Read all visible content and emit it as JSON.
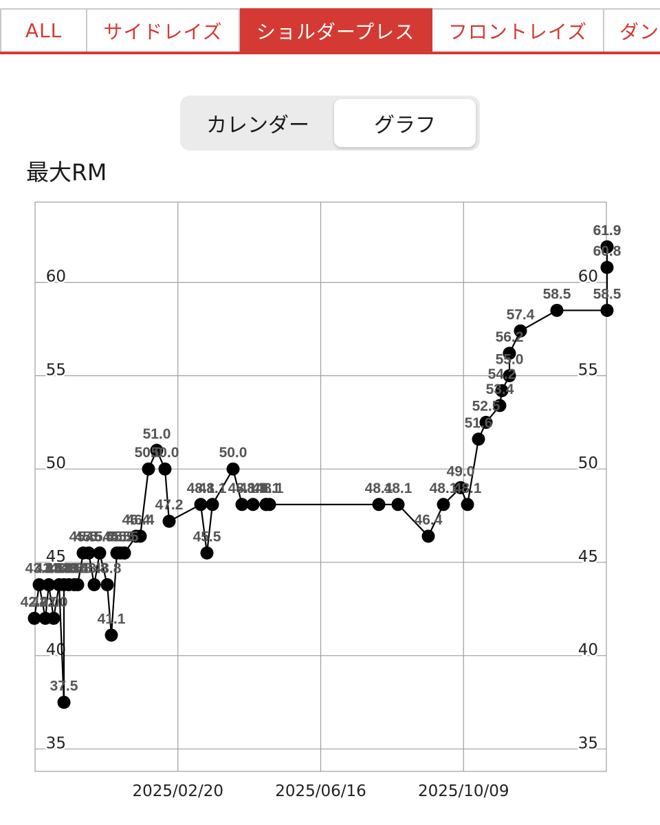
{
  "tabs": [
    {
      "label": "ALL",
      "active": false
    },
    {
      "label": "サイドレイズ",
      "active": false
    },
    {
      "label": "ショルダープレス",
      "active": true
    },
    {
      "label": "フロントレイズ",
      "active": false
    },
    {
      "label": "ダン",
      "active": false
    }
  ],
  "view_toggle": {
    "calendar_label": "カレンダー",
    "graph_label": "グラフ",
    "selected": "グラフ"
  },
  "colors": {
    "accent": "#d43a33",
    "line": "#000000",
    "grid": "#9e9e9e",
    "point_label": "#555555"
  },
  "chart_data": {
    "type": "line",
    "title": "最大RM",
    "xlabel": "",
    "ylabel": "",
    "x_tick_labels": [
      "2025/02/20",
      "2025/06/16",
      "2025/10/09"
    ],
    "y_ticks": [
      35,
      40,
      45,
      50,
      55,
      60
    ],
    "ylim": [
      33.8,
      64.3
    ],
    "grid": true,
    "series": [
      {
        "values": [
          42.0,
          43.8,
          42.0,
          43.8,
          42.0,
          43.8,
          37.5,
          43.8,
          43.8,
          43.8,
          43.8,
          45.5,
          45.5,
          43.8,
          45.5,
          43.8,
          41.1,
          45.5,
          45.5,
          45.5,
          45.5,
          46.4,
          46.4,
          50.0,
          51.0,
          50.0,
          47.2,
          48.1,
          45.5,
          48.1,
          50.0,
          48.1,
          48.1,
          48.1,
          48.1,
          48.1,
          48.1,
          48.1,
          46.4,
          48.1,
          49.0,
          48.1,
          51.6,
          52.5,
          53.4,
          54.2,
          55.0,
          56.2,
          57.4,
          58.5,
          58.5,
          61.9,
          61.9,
          60.8
        ],
        "labels": [
          "42.0",
          "43.8",
          "42.0",
          "43.8",
          "42.0",
          "43.8",
          "37.5",
          "43.8",
          "43.8",
          "43.8",
          "43.8",
          "45.5",
          "45.5",
          "43.8",
          "45.5",
          "43.8",
          "41.1",
          "45.5",
          "45.5",
          "45.5",
          "45.5",
          "46.4",
          "46.4",
          "50.0",
          "51.0",
          "50.0",
          "47.2",
          "48.1",
          "45.5",
          "48.1",
          "50.0",
          "48.1",
          "48.1",
          "48.1",
          "48.1",
          "48.1",
          "48.1",
          "48.1",
          "46.4",
          "48.1",
          "49.0",
          "48.1",
          "51.6",
          "52.5",
          "53.4",
          "54.2",
          "55.0",
          "56.2",
          "57.4",
          "58.5",
          "58.5",
          "61.9",
          "61.9",
          "60.8"
        ]
      }
    ]
  }
}
